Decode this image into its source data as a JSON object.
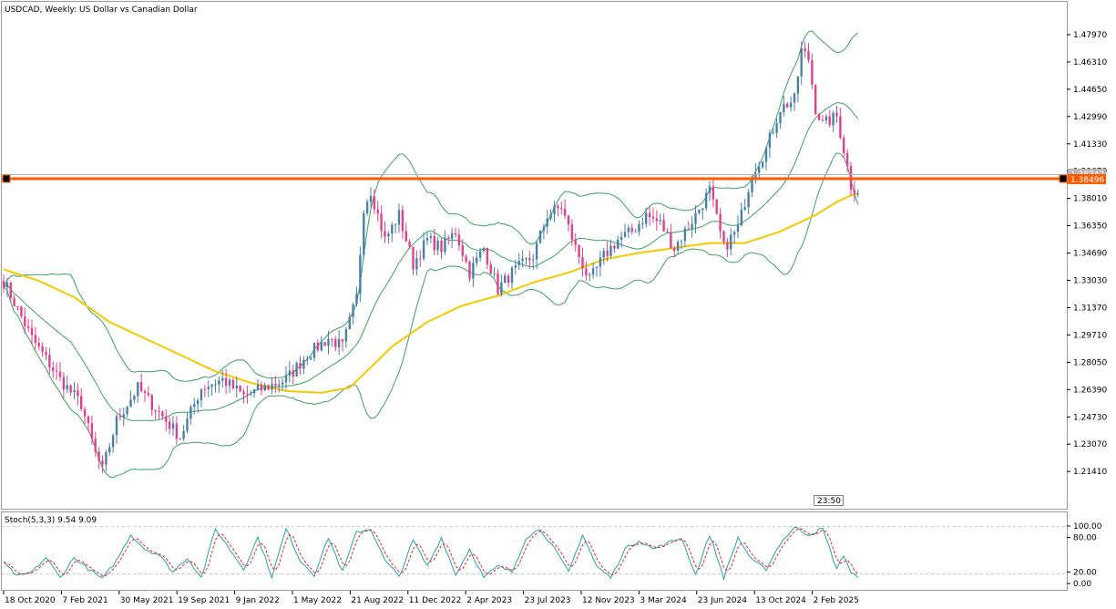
{
  "window": {
    "title": "USDCAD, Weekly:  US Dollar vs Canadian Dollar"
  },
  "colors": {
    "background": "#ffffff",
    "bull_candle": "#4a7fa8",
    "bear_candle": "#e0408c",
    "bollinger": "#3aa062",
    "moving_average": "#f5c800",
    "level_line": "#ff5a00",
    "ask_line": "#b5b5b5",
    "stoch_main": "#27a0a8",
    "stoch_signal": "#e8241c",
    "grid_dash": "#c8c8c8"
  },
  "chart_data": {
    "type": "candlestick",
    "symbol": "USDCAD",
    "timeframe": "Weekly",
    "description": "US Dollar vs Canadian Dollar",
    "price_axis": {
      "ticks": [
        "1.47970",
        "1.46310",
        "1.44650",
        "1.42990",
        "1.41330",
        "1.39670",
        "1.38010",
        "1.36350",
        "1.34690",
        "1.33030",
        "1.31370",
        "1.29710",
        "1.28050",
        "1.26390",
        "1.24730",
        "1.23070",
        "1.21410"
      ],
      "range": [
        1.197,
        1.493
      ]
    },
    "time_axis": {
      "labels": [
        "18 Oct 2020",
        "7 Feb 2021",
        "30 May 2021",
        "19 Sep 2021",
        "9 Jan 2022",
        "1 May 2022",
        "21 Aug 2022",
        "11 Dec 2022",
        "2 Apr 2023",
        "23 Jul 2023",
        "12 Nov 2023",
        "3 Mar 2024",
        "23 Jun 2024",
        "13 Oct 2024",
        "2 Feb 2025"
      ]
    },
    "price_tags": [
      {
        "value": "1.38742",
        "role": "ask"
      },
      {
        "value": "1.38496",
        "role": "bid"
      }
    ],
    "level_line": 1.385,
    "time_marker": "23:50",
    "close_path_anchors": [
      [
        0,
        1.33
      ],
      [
        8,
        1.295
      ],
      [
        16,
        1.27
      ],
      [
        22,
        1.255
      ],
      [
        26,
        1.225
      ],
      [
        28,
        1.215
      ],
      [
        32,
        1.245
      ],
      [
        38,
        1.265
      ],
      [
        44,
        1.25
      ],
      [
        50,
        1.235
      ],
      [
        56,
        1.265
      ],
      [
        62,
        1.27
      ],
      [
        68,
        1.26
      ],
      [
        74,
        1.265
      ],
      [
        80,
        1.27
      ],
      [
        86,
        1.285
      ],
      [
        92,
        1.295
      ],
      [
        96,
        1.29
      ],
      [
        100,
        1.32
      ],
      [
        102,
        1.375
      ],
      [
        104,
        1.385
      ],
      [
        108,
        1.355
      ],
      [
        112,
        1.37
      ],
      [
        116,
        1.34
      ],
      [
        120,
        1.355
      ],
      [
        124,
        1.35
      ],
      [
        128,
        1.36
      ],
      [
        132,
        1.335
      ],
      [
        136,
        1.35
      ],
      [
        140,
        1.325
      ],
      [
        144,
        1.335
      ],
      [
        150,
        1.345
      ],
      [
        154,
        1.37
      ],
      [
        158,
        1.375
      ],
      [
        162,
        1.35
      ],
      [
        166,
        1.33
      ],
      [
        170,
        1.345
      ],
      [
        174,
        1.355
      ],
      [
        178,
        1.36
      ],
      [
        182,
        1.37
      ],
      [
        186,
        1.365
      ],
      [
        190,
        1.35
      ],
      [
        196,
        1.37
      ],
      [
        200,
        1.385
      ],
      [
        204,
        1.35
      ],
      [
        208,
        1.362
      ],
      [
        212,
        1.395
      ],
      [
        216,
        1.41
      ],
      [
        220,
        1.435
      ],
      [
        224,
        1.44
      ],
      [
        226,
        1.47
      ],
      [
        228,
        1.465
      ],
      [
        230,
        1.435
      ],
      [
        232,
        1.425
      ],
      [
        236,
        1.43
      ],
      [
        238,
        1.41
      ],
      [
        240,
        1.388
      ],
      [
        242,
        1.385
      ]
    ],
    "moving_average_anchors": [
      [
        0,
        1.337
      ],
      [
        10,
        1.33
      ],
      [
        20,
        1.32
      ],
      [
        30,
        1.305
      ],
      [
        40,
        1.295
      ],
      [
        50,
        1.285
      ],
      [
        60,
        1.275
      ],
      [
        70,
        1.268
      ],
      [
        80,
        1.263
      ],
      [
        90,
        1.262
      ],
      [
        98,
        1.265
      ],
      [
        110,
        1.29
      ],
      [
        120,
        1.305
      ],
      [
        130,
        1.315
      ],
      [
        140,
        1.321
      ],
      [
        150,
        1.329
      ],
      [
        160,
        1.335
      ],
      [
        170,
        1.343
      ],
      [
        180,
        1.347
      ],
      [
        190,
        1.35
      ],
      [
        200,
        1.353
      ],
      [
        210,
        1.353
      ],
      [
        220,
        1.36
      ],
      [
        230,
        1.37
      ],
      [
        236,
        1.378
      ],
      [
        240,
        1.382
      ],
      [
        242,
        1.383
      ]
    ],
    "stochastic": {
      "label": "Stoch(5,3,3) 9.54 9.09",
      "params": [
        5,
        3,
        3
      ],
      "main": 9.54,
      "signal": 9.09,
      "axis_labels": [
        "100.00",
        "80.00",
        "20.00",
        "0.00"
      ],
      "levels": [
        20,
        80
      ],
      "anchors": [
        [
          0,
          35
        ],
        [
          4,
          12
        ],
        [
          8,
          20
        ],
        [
          12,
          45
        ],
        [
          16,
          10
        ],
        [
          20,
          45
        ],
        [
          24,
          25
        ],
        [
          28,
          8
        ],
        [
          32,
          40
        ],
        [
          36,
          85
        ],
        [
          40,
          60
        ],
        [
          44,
          50
        ],
        [
          48,
          20
        ],
        [
          52,
          45
        ],
        [
          56,
          10
        ],
        [
          60,
          95
        ],
        [
          64,
          60
        ],
        [
          68,
          25
        ],
        [
          72,
          80
        ],
        [
          76,
          12
        ],
        [
          80,
          95
        ],
        [
          84,
          40
        ],
        [
          88,
          15
        ],
        [
          92,
          80
        ],
        [
          96,
          20
        ],
        [
          100,
          90
        ],
        [
          104,
          95
        ],
        [
          108,
          40
        ],
        [
          112,
          12
        ],
        [
          116,
          75
        ],
        [
          120,
          30
        ],
        [
          124,
          80
        ],
        [
          128,
          15
        ],
        [
          132,
          60
        ],
        [
          136,
          10
        ],
        [
          140,
          30
        ],
        [
          144,
          20
        ],
        [
          148,
          80
        ],
        [
          152,
          95
        ],
        [
          156,
          60
        ],
        [
          160,
          20
        ],
        [
          164,
          85
        ],
        [
          168,
          30
        ],
        [
          172,
          10
        ],
        [
          176,
          60
        ],
        [
          180,
          75
        ],
        [
          184,
          60
        ],
        [
          188,
          70
        ],
        [
          192,
          80
        ],
        [
          196,
          15
        ],
        [
          200,
          85
        ],
        [
          204,
          10
        ],
        [
          208,
          80
        ],
        [
          212,
          40
        ],
        [
          216,
          25
        ],
        [
          220,
          70
        ],
        [
          224,
          98
        ],
        [
          228,
          85
        ],
        [
          232,
          95
        ],
        [
          236,
          25
        ],
        [
          238,
          50
        ],
        [
          240,
          20
        ],
        [
          242,
          9.54
        ]
      ]
    }
  }
}
